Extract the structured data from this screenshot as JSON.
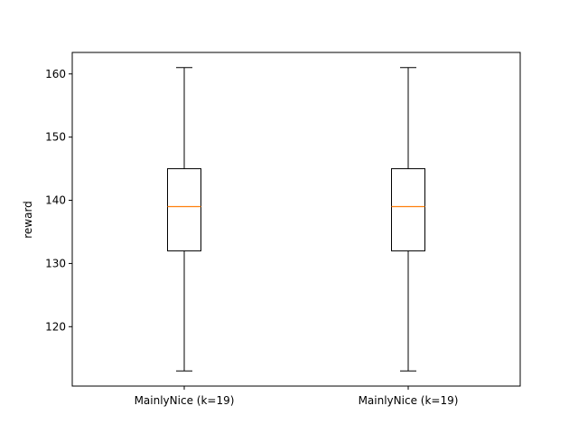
{
  "chart_data": {
    "type": "boxplot",
    "title": "",
    "xlabel": "",
    "ylabel": "reward",
    "ylim": [
      110.6,
      163.4
    ],
    "yticks": [
      120,
      130,
      140,
      150,
      160
    ],
    "grid": false,
    "categories": [
      "MainlyNice (k=19)",
      "MainlyNice (k=19)"
    ],
    "boxes": [
      {
        "whisker_low": 113,
        "q1": 132,
        "median": 139,
        "q3": 145,
        "whisker_high": 161
      },
      {
        "whisker_low": 113,
        "q1": 132,
        "median": 139,
        "q3": 145,
        "whisker_high": 161
      }
    ],
    "colors": {
      "box": "#000000",
      "median": "#ff7f0e"
    }
  }
}
